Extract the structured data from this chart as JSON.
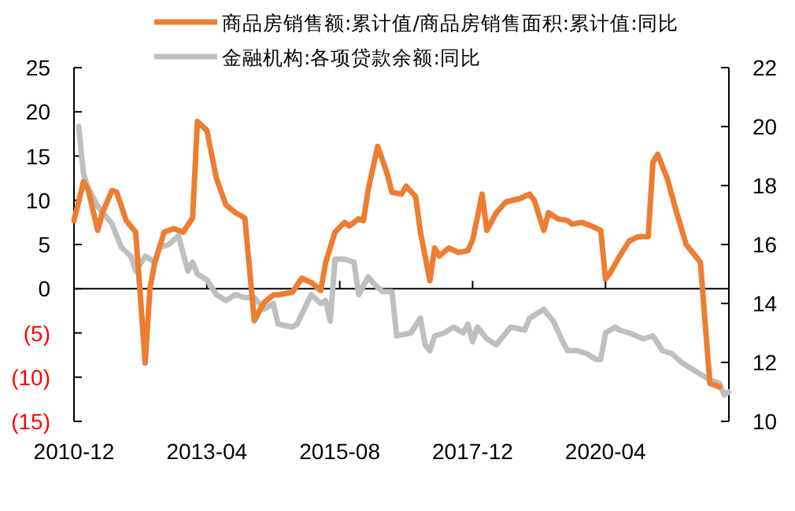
{
  "chart_data": {
    "type": "line",
    "legend": "top",
    "line_style": "solid",
    "xlim": [
      "2010-12",
      "2022-06"
    ],
    "xticks": [
      "2010-12",
      "2013-04",
      "2015-08",
      "2017-12",
      "2020-04"
    ],
    "ylim": [
      -15,
      25
    ],
    "yticks": [
      25,
      20,
      15,
      10,
      5,
      0,
      {
        "value": -5,
        "label": "(5)"
      },
      {
        "value": -10,
        "label": "(10)"
      },
      {
        "value": -15,
        "label": "(15)"
      }
    ],
    "y2lim": [
      10,
      22
    ],
    "y2ticks": [
      10,
      12,
      14,
      16,
      18,
      20,
      22
    ],
    "series": [
      {
        "name": "商品房销售额:累计值/商品房销售面积:累计值:同比",
        "color": "#ed7d31",
        "x": [
          "2010-12",
          "2011-02",
          "2011-03",
          "2011-05",
          "2011-06",
          "2011-08",
          "2011-09",
          "2011-11",
          "2012-01",
          "2012-03",
          "2012-04",
          "2012-05",
          "2012-07",
          "2012-09",
          "2012-11",
          "2013-01",
          "2013-02",
          "2013-04",
          "2013-06",
          "2013-08",
          "2013-10",
          "2013-12",
          "2014-02",
          "2014-04",
          "2014-06",
          "2014-07",
          "2014-10",
          "2014-12",
          "2015-02",
          "2015-04",
          "2015-05",
          "2015-07",
          "2015-09",
          "2015-10",
          "2015-12",
          "2016-01",
          "2016-02",
          "2016-04",
          "2016-06",
          "2016-07",
          "2016-09",
          "2016-10",
          "2016-12",
          "2017-01",
          "2017-03",
          "2017-04",
          "2017-05",
          "2017-07",
          "2017-09",
          "2017-11",
          "2017-12",
          "2018-02",
          "2018-03",
          "2018-05",
          "2018-07",
          "2018-10",
          "2018-12",
          "2019-01",
          "2019-03",
          "2019-04",
          "2019-06",
          "2019-08",
          "2019-09",
          "2019-11",
          "2020-01",
          "2020-03",
          "2020-04",
          "2020-05",
          "2020-07",
          "2020-09",
          "2020-11",
          "2021-01",
          "2021-02",
          "2021-03",
          "2021-05",
          "2021-07",
          "2021-09",
          "2021-12",
          "2022-02",
          "2022-04"
        ],
        "values": [
          7.7,
          12.1,
          11.2,
          6.6,
          8.6,
          11.1,
          10.9,
          7.7,
          6.4,
          -8.4,
          0,
          2.9,
          6.4,
          6.8,
          6.4,
          8,
          18.9,
          17.9,
          12.5,
          9.5,
          8.6,
          8,
          -3.6,
          -1.6,
          -0.7,
          -0.7,
          -0.4,
          1.2,
          0.7,
          -0.2,
          2.9,
          6.4,
          7.5,
          7.1,
          7.9,
          7.7,
          11.2,
          16.1,
          13,
          10.9,
          10.7,
          11.6,
          10.4,
          6.4,
          0.9,
          4.6,
          3.7,
          4.6,
          4.1,
          4.3,
          5.5,
          10.7,
          6.6,
          8.6,
          9.8,
          10.2,
          10.7,
          10,
          6.6,
          8.6,
          7.9,
          7.7,
          7.3,
          7.5,
          7.1,
          6.6,
          1.1,
          1.8,
          3.7,
          5.4,
          5.9,
          5.9,
          14.3,
          15.2,
          12.5,
          8.6,
          5,
          3,
          -10.7,
          -11.1
        ]
      },
      {
        "name": "金融机构:各项贷款余额:同比",
        "color": "#bfbfbf",
        "axis": "y2",
        "x": [
          "2011-01",
          "2011-02",
          "2011-03",
          "2011-05",
          "2011-08",
          "2011-10",
          "2011-12",
          "2012-01",
          "2012-03",
          "2012-05",
          "2012-06",
          "2012-08",
          "2012-10",
          "2012-11",
          "2012-12",
          "2013-01",
          "2013-02",
          "2013-04",
          "2013-06",
          "2013-08",
          "2013-10",
          "2013-12",
          "2014-02",
          "2014-04",
          "2014-06",
          "2014-07",
          "2014-10",
          "2014-11",
          "2015-02",
          "2015-04",
          "2015-05",
          "2015-06",
          "2015-07",
          "2015-09",
          "2015-11",
          "2015-12",
          "2016-02",
          "2016-03",
          "2016-05",
          "2016-07",
          "2016-08",
          "2016-11",
          "2017-01",
          "2017-02",
          "2017-03",
          "2017-04",
          "2017-06",
          "2017-08",
          "2017-10",
          "2017-11",
          "2017-12",
          "2018-01",
          "2018-03",
          "2018-05",
          "2018-08",
          "2018-11",
          "2018-12",
          "2019-03",
          "2019-05",
          "2019-07",
          "2019-08",
          "2019-10",
          "2019-12",
          "2020-02",
          "2020-03",
          "2020-04",
          "2020-06",
          "2020-07",
          "2020-09",
          "2020-12",
          "2021-02",
          "2021-04",
          "2021-06",
          "2021-08",
          "2021-10",
          "2021-12",
          "2022-02",
          "2022-04",
          "2022-05",
          "2022-06"
        ],
        "values": [
          20,
          18.4,
          17.9,
          17.3,
          16.7,
          15.9,
          15.6,
          15.1,
          15.6,
          15.4,
          15.9,
          16,
          16.3,
          15.7,
          15.1,
          15.4,
          15,
          14.8,
          14.3,
          14.1,
          14.3,
          14.2,
          14.2,
          13.8,
          14,
          13.3,
          13.2,
          13.3,
          14.3,
          14,
          14.1,
          13.4,
          15.5,
          15.5,
          15.4,
          14.3,
          14.9,
          14.7,
          14.4,
          14.4,
          12.9,
          13,
          13.5,
          12.6,
          12.4,
          12.9,
          13,
          13.2,
          13,
          13.3,
          12.7,
          13.2,
          12.8,
          12.6,
          13.2,
          13.1,
          13.5,
          13.8,
          13.4,
          12.7,
          12.4,
          12.4,
          12.3,
          12.1,
          12.1,
          13,
          13.2,
          13.1,
          13,
          12.8,
          12.9,
          12.4,
          12.3,
          12,
          11.8,
          11.6,
          11.4,
          11.3,
          10.9,
          11
        ]
      }
    ]
  }
}
